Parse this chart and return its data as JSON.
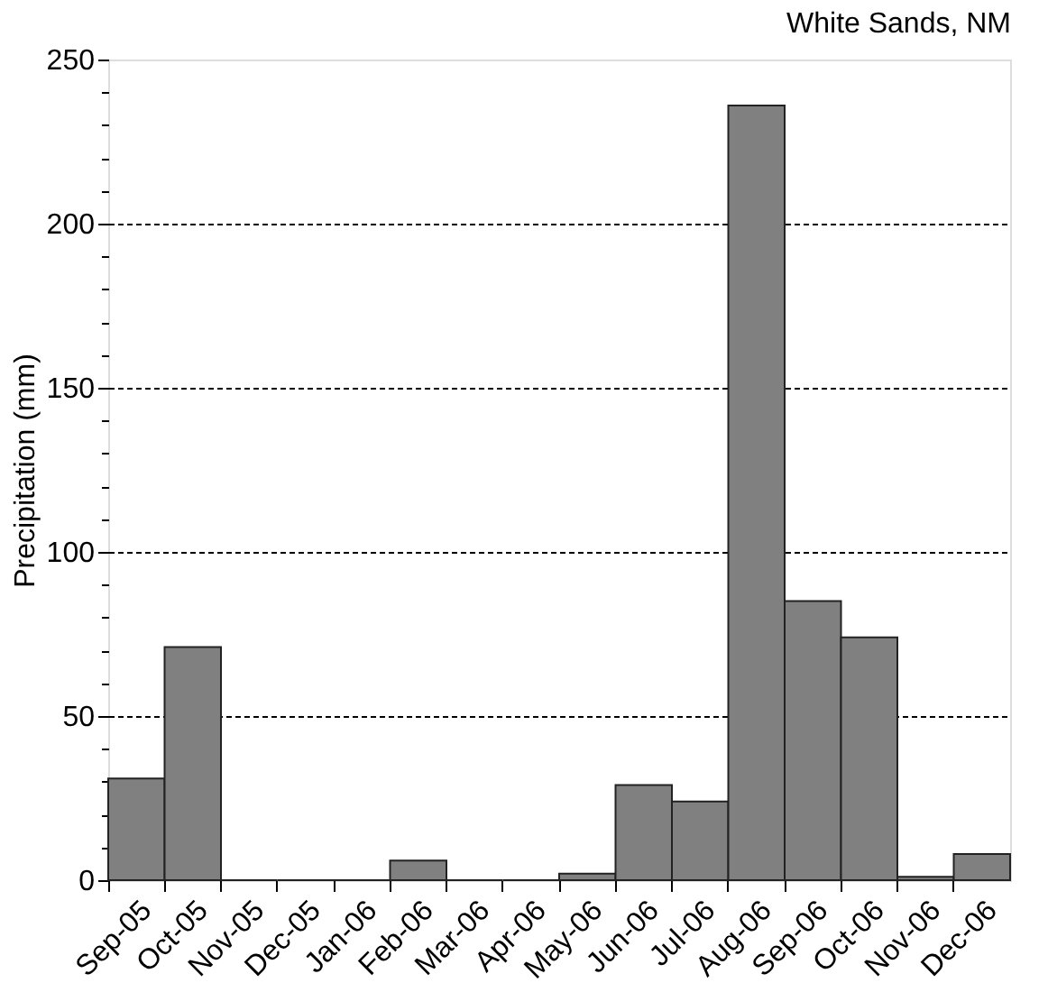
{
  "chart_data": {
    "type": "bar",
    "title": "White Sands, NM",
    "ylabel": "Precipitation (mm)",
    "categories": [
      "Sep-05",
      "Oct-05",
      "Nov-05",
      "Dec-05",
      "Jan-06",
      "Feb-06",
      "Mar-06",
      "Apr-06",
      "May-06",
      "Jun-06",
      "Jul-06",
      "Aug-06",
      "Sep-06",
      "Oct-06",
      "Nov-06",
      "Dec-06"
    ],
    "values": [
      31,
      71,
      0,
      0,
      0,
      6,
      0,
      0,
      2,
      29,
      24,
      236,
      85,
      74,
      1,
      8
    ],
    "color": "#808080",
    "ylim": [
      0,
      250
    ],
    "yticks": [
      0,
      {
        "value": 10,
        "label": null
      },
      {
        "value": 20,
        "label": null
      },
      {
        "value": 30,
        "label": null
      },
      {
        "value": 40,
        "label": null
      },
      50,
      {
        "value": 60,
        "label": null
      },
      {
        "value": 70,
        "label": null
      },
      {
        "value": 80,
        "label": null
      },
      {
        "value": 90,
        "label": null
      },
      100,
      {
        "value": 110,
        "label": null
      },
      {
        "value": 120,
        "label": null
      },
      {
        "value": 130,
        "label": null
      },
      {
        "value": 140,
        "label": null
      },
      150,
      {
        "value": 160,
        "label": null
      },
      {
        "value": 170,
        "label": null
      },
      {
        "value": 180,
        "label": null
      },
      {
        "value": 190,
        "label": null
      },
      200,
      {
        "value": 210,
        "label": null
      },
      {
        "value": 220,
        "label": null
      },
      {
        "value": 230,
        "label": null
      },
      {
        "value": 240,
        "label": null
      },
      250
    ],
    "grid": "y"
  }
}
